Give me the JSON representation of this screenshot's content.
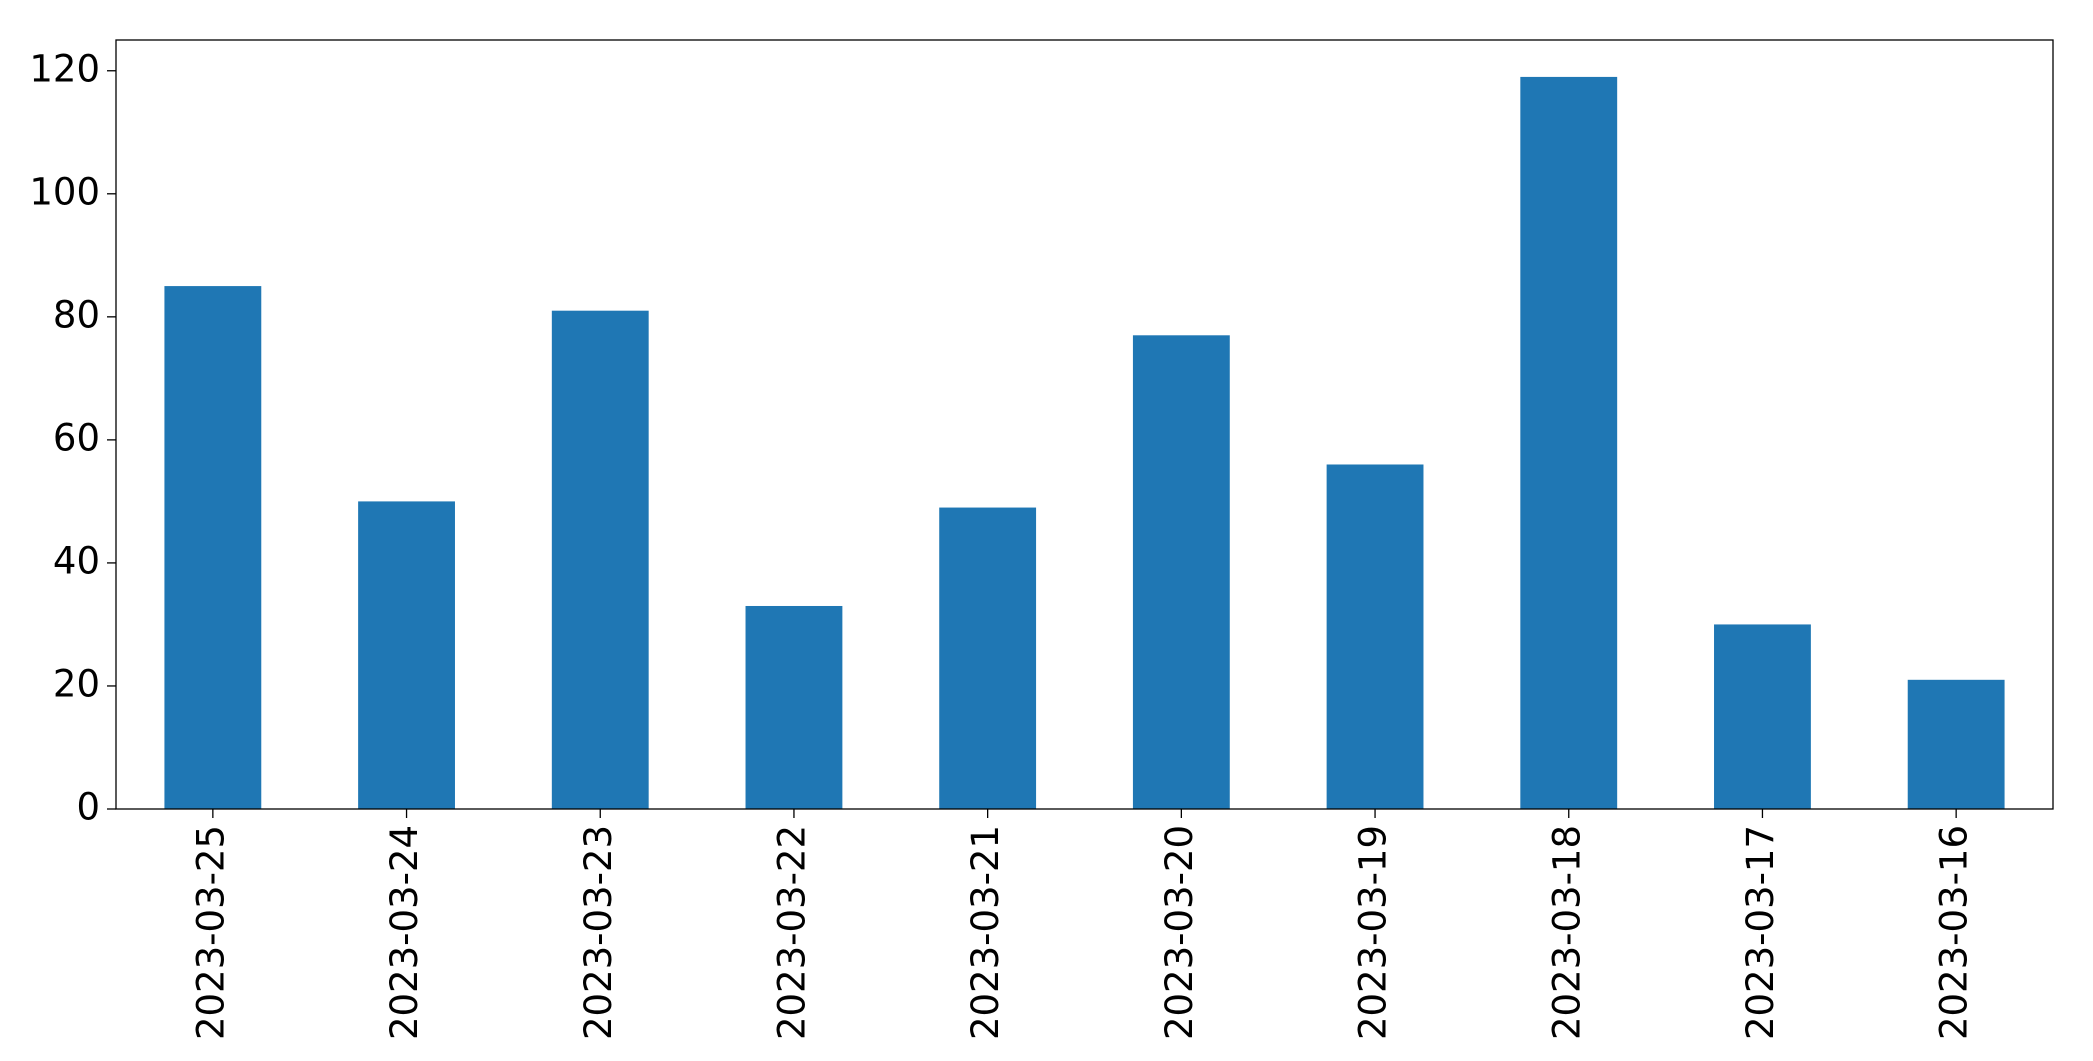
{
  "chart_data": {
    "type": "bar",
    "categories": [
      "2023-03-25",
      "2023-03-24",
      "2023-03-23",
      "2023-03-22",
      "2023-03-21",
      "2023-03-20",
      "2023-03-19",
      "2023-03-18",
      "2023-03-17",
      "2023-03-16"
    ],
    "values": [
      85,
      50,
      81,
      33,
      49,
      77,
      56,
      119,
      30,
      21
    ],
    "color": "#1f77b4",
    "ylim": [
      0,
      125
    ],
    "yticks": [
      0,
      20,
      40,
      60,
      80,
      100,
      120
    ],
    "grid": false
  }
}
